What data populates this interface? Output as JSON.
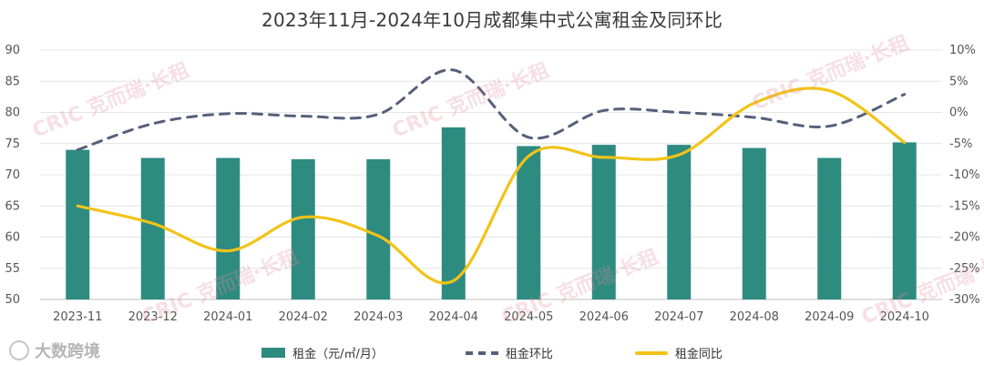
{
  "title": "2023年11月-2024年10月成都集中式公寓租金及同环比",
  "watermark": "CRIC 克而瑞·长租",
  "source_label": "大数跨境",
  "colors": {
    "bar": "#2e8b80",
    "mom": "#56607a",
    "yoy": "#f2c318",
    "grid": "#e4e4e4",
    "axis": "#bfbfbf"
  },
  "chart_data": {
    "type": "bar",
    "categories": [
      "2023-11",
      "2023-12",
      "2024-01",
      "2024-02",
      "2024-03",
      "2024-04",
      "2024-05",
      "2024-06",
      "2024-07",
      "2024-08",
      "2024-09",
      "2024-10"
    ],
    "series": [
      {
        "name": "租金（元/㎡/月）",
        "kind": "bar",
        "axis": "left",
        "values": [
          74.0,
          72.7,
          72.7,
          72.5,
          72.5,
          77.6,
          74.6,
          74.8,
          74.8,
          74.3,
          72.7,
          75.2
        ]
      },
      {
        "name": "租金环比",
        "kind": "line-dashed",
        "axis": "right",
        "values": [
          -6.0,
          -1.8,
          -0.2,
          -0.6,
          -0.3,
          6.8,
          -4.0,
          0.3,
          0.0,
          -0.8,
          -2.2,
          2.9
        ]
      },
      {
        "name": "租金同比",
        "kind": "line-smooth",
        "axis": "right",
        "values": [
          -15.0,
          -17.8,
          -22.2,
          -16.8,
          -19.8,
          -27.0,
          -7.0,
          -7.2,
          -6.8,
          1.5,
          3.5,
          -4.8
        ]
      }
    ],
    "y_left": {
      "range": [
        50,
        90
      ],
      "ticks": [
        "50",
        "55",
        "60",
        "65",
        "70",
        "75",
        "80",
        "85",
        "90"
      ]
    },
    "y_right": {
      "range": [
        -30,
        10
      ],
      "ticks": [
        "-30%",
        "-25%",
        "-20%",
        "-15%",
        "-10%",
        "-5%",
        "0%",
        "5%",
        "10%"
      ]
    },
    "grid": true,
    "legend": "bottom"
  }
}
